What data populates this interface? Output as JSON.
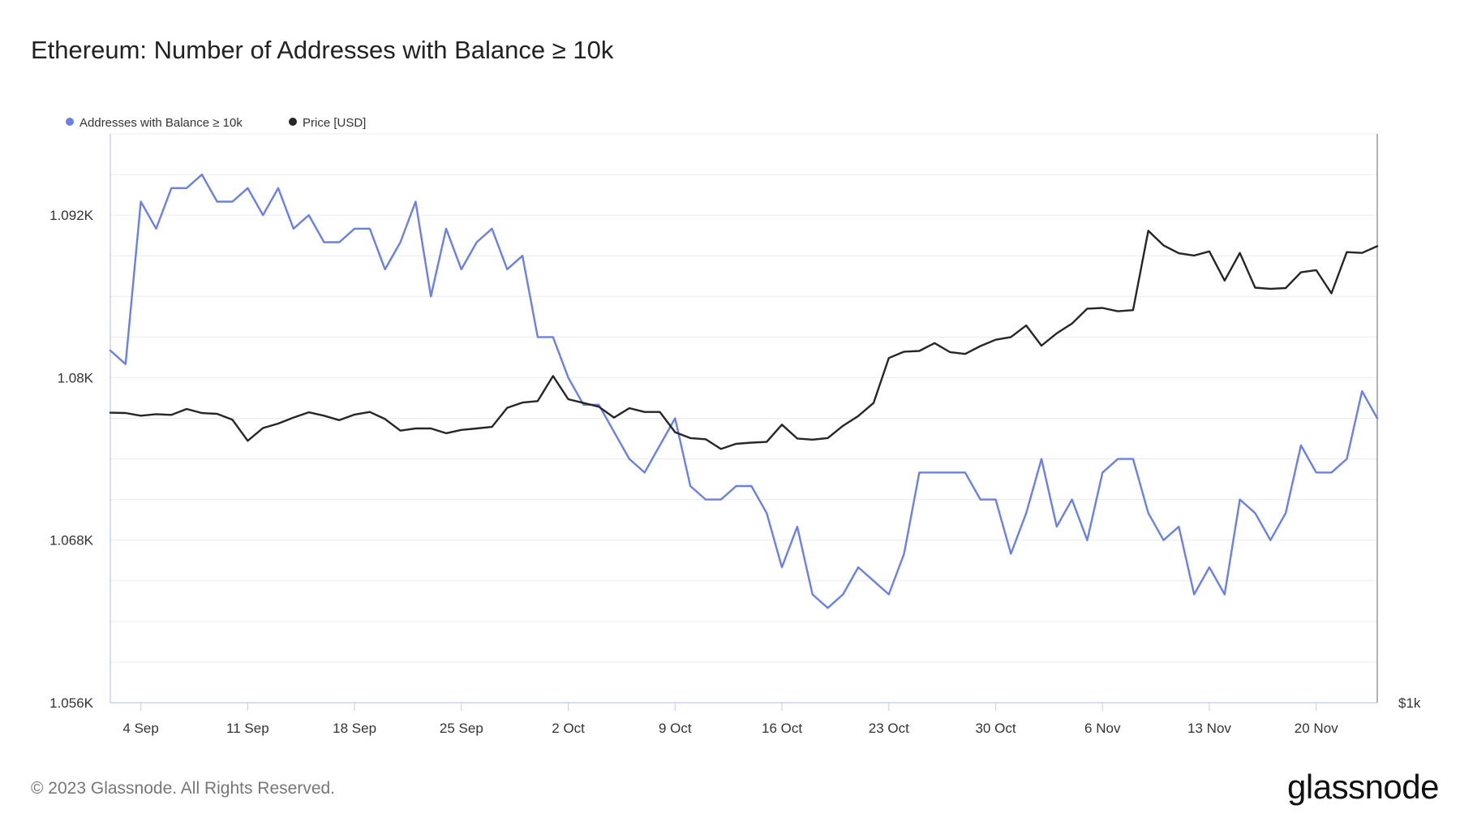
{
  "title": "Ethereum: Number of Addresses with Balance ≥ 10k",
  "footer": "© 2023 Glassnode. All Rights Reserved.",
  "brand": "glassnode",
  "colors": {
    "addresses": "#6a80e6",
    "price": "#262626",
    "grid": "#ececec",
    "axis": "#c9d2f3"
  },
  "chart_data": {
    "type": "line",
    "x_ticks": [
      "4 Sep",
      "11 Sep",
      "18 Sep",
      "25 Sep",
      "2 Oct",
      "9 Oct",
      "16 Oct",
      "23 Oct",
      "30 Oct",
      "6 Nov",
      "13 Nov",
      "20 Nov"
    ],
    "x_range": [
      "2023-09-02",
      "2023-11-24"
    ],
    "y_ticks": [
      "1.092K",
      "1.08K",
      "1.068K",
      "1.056K"
    ],
    "y_range": [
      1056,
      1098
    ],
    "y2_ticks": [
      "$1k"
    ],
    "legend_position": "top-left",
    "grid": true,
    "series": [
      {
        "name": "Addresses with Balance ≥ 10k",
        "axis": "left",
        "x": [
          "2023-09-02",
          "2023-09-03",
          "2023-09-04",
          "2023-09-05",
          "2023-09-06",
          "2023-09-07",
          "2023-09-08",
          "2023-09-09",
          "2023-09-10",
          "2023-09-11",
          "2023-09-12",
          "2023-09-13",
          "2023-09-14",
          "2023-09-15",
          "2023-09-16",
          "2023-09-17",
          "2023-09-18",
          "2023-09-19",
          "2023-09-20",
          "2023-09-21",
          "2023-09-22",
          "2023-09-23",
          "2023-09-24",
          "2023-09-25",
          "2023-09-26",
          "2023-09-27",
          "2023-09-28",
          "2023-09-29",
          "2023-09-30",
          "2023-10-01",
          "2023-10-02",
          "2023-10-03",
          "2023-10-04",
          "2023-10-05",
          "2023-10-06",
          "2023-10-07",
          "2023-10-08",
          "2023-10-09",
          "2023-10-10",
          "2023-10-11",
          "2023-10-12",
          "2023-10-13",
          "2023-10-14",
          "2023-10-15",
          "2023-10-16",
          "2023-10-17",
          "2023-10-18",
          "2023-10-19",
          "2023-10-20",
          "2023-10-21",
          "2023-10-22",
          "2023-10-23",
          "2023-10-24",
          "2023-10-25",
          "2023-10-26",
          "2023-10-27",
          "2023-10-28",
          "2023-10-29",
          "2023-10-30",
          "2023-10-31",
          "2023-11-01",
          "2023-11-02",
          "2023-11-03",
          "2023-11-04",
          "2023-11-05",
          "2023-11-06",
          "2023-11-07",
          "2023-11-08",
          "2023-11-09",
          "2023-11-10",
          "2023-11-11",
          "2023-11-12",
          "2023-11-13",
          "2023-11-14",
          "2023-11-15",
          "2023-11-16",
          "2023-11-17",
          "2023-11-18",
          "2023-11-19",
          "2023-11-20",
          "2023-11-21",
          "2023-11-22",
          "2023-11-23",
          "2023-11-24"
        ],
        "values": [
          1082,
          1081,
          1093,
          1091,
          1094,
          1094,
          1095,
          1093,
          1093,
          1094,
          1092,
          1094,
          1091,
          1092,
          1090,
          1090,
          1091,
          1091,
          1088,
          1090,
          1093,
          1086,
          1091,
          1088,
          1090,
          1091,
          1088,
          1089,
          1083,
          1083,
          1080,
          1078,
          1078,
          1076,
          1074,
          1073,
          1075,
          1077,
          1072,
          1071,
          1071,
          1072,
          1072,
          1070,
          1066,
          1069,
          1064,
          1063,
          1064,
          1066,
          1065,
          1064,
          1067,
          1073,
          1073,
          1073,
          1073,
          1071,
          1071,
          1067,
          1070,
          1074,
          1069,
          1071,
          1068,
          1073,
          1074,
          1074,
          1070,
          1068,
          1069,
          1064,
          1066,
          1064,
          1071,
          1070,
          1068,
          1070,
          1075,
          1073,
          1073,
          1074,
          1079,
          1077
        ]
      },
      {
        "name": "Price [USD]",
        "axis": "right",
        "x": [
          "2023-09-02",
          "2023-09-03",
          "2023-09-04",
          "2023-09-05",
          "2023-09-06",
          "2023-09-07",
          "2023-09-08",
          "2023-09-09",
          "2023-09-10",
          "2023-09-11",
          "2023-09-12",
          "2023-09-13",
          "2023-09-14",
          "2023-09-15",
          "2023-09-16",
          "2023-09-17",
          "2023-09-18",
          "2023-09-19",
          "2023-09-20",
          "2023-09-21",
          "2023-09-22",
          "2023-09-23",
          "2023-09-24",
          "2023-09-25",
          "2023-09-26",
          "2023-09-27",
          "2023-09-28",
          "2023-09-29",
          "2023-09-30",
          "2023-10-01",
          "2023-10-02",
          "2023-10-03",
          "2023-10-04",
          "2023-10-05",
          "2023-10-06",
          "2023-10-07",
          "2023-10-08",
          "2023-10-09",
          "2023-10-10",
          "2023-10-11",
          "2023-10-12",
          "2023-10-13",
          "2023-10-14",
          "2023-10-15",
          "2023-10-16",
          "2023-10-17",
          "2023-10-18",
          "2023-10-19",
          "2023-10-20",
          "2023-10-21",
          "2023-10-22",
          "2023-10-23",
          "2023-10-24",
          "2023-10-25",
          "2023-10-26",
          "2023-10-27",
          "2023-10-28",
          "2023-10-29",
          "2023-10-30",
          "2023-10-31",
          "2023-11-01",
          "2023-11-02",
          "2023-11-03",
          "2023-11-04",
          "2023-11-05",
          "2023-11-06",
          "2023-11-07",
          "2023-11-08",
          "2023-11-09",
          "2023-11-10",
          "2023-11-11",
          "2023-11-12",
          "2023-11-13",
          "2023-11-14",
          "2023-11-15",
          "2023-11-16",
          "2023-11-17",
          "2023-11-18",
          "2023-11-19",
          "2023-11-20",
          "2023-11-21",
          "2023-11-22",
          "2023-11-23",
          "2023-11-24"
        ],
        "values": [
          1635,
          1634,
          1627,
          1631,
          1629,
          1645,
          1634,
          1632,
          1616,
          1560,
          1594,
          1606,
          1622,
          1636,
          1627,
          1615,
          1630,
          1637,
          1618,
          1587,
          1593,
          1593,
          1580,
          1589,
          1593,
          1597,
          1648,
          1662,
          1666,
          1733,
          1671,
          1661,
          1651,
          1622,
          1647,
          1637,
          1637,
          1583,
          1567,
          1564,
          1538,
          1552,
          1555,
          1557,
          1603,
          1566,
          1563,
          1567,
          1600,
          1626,
          1661,
          1781,
          1798,
          1800,
          1821,
          1797,
          1792,
          1813,
          1830,
          1837,
          1868,
          1814,
          1847,
          1873,
          1913,
          1915,
          1906,
          1909,
          2121,
          2082,
          2061,
          2055,
          2066,
          1988,
          2062,
          1969,
          1966,
          1968,
          2010,
          2016,
          1954,
          2064,
          2062,
          2080
        ]
      }
    ]
  }
}
